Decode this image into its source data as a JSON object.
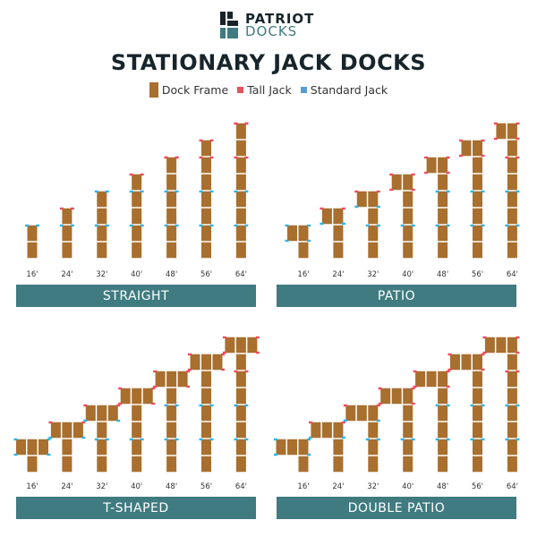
{
  "logo": {
    "top": "PATRIOT",
    "bottom": "DOCKS"
  },
  "title": "STATIONARY JACK DOCKS",
  "legend": [
    {
      "label": "Dock Frame",
      "color": "#a86f2e"
    },
    {
      "label": "Tall Jack",
      "color": "#e8525f"
    },
    {
      "label": "Standard Jack",
      "color": "#5b9bd5"
    }
  ],
  "colors": {
    "frame": "#a86f2e",
    "tall_jack": "#ef4b5c",
    "standard_jack": "#2fb4e6",
    "banner": "#3f7b80",
    "title": "#17252b"
  },
  "sizes": [
    "16'",
    "24'",
    "32'",
    "40'",
    "48'",
    "56'",
    "64'"
  ],
  "sections_per_size": [
    2,
    3,
    4,
    5,
    6,
    7,
    8
  ],
  "panels": [
    {
      "name": "STRAIGHT",
      "platform": "none"
    },
    {
      "name": "PATIO",
      "platform": "two-wide-left"
    },
    {
      "name": "T-SHAPED",
      "platform": "three-wide-centered"
    },
    {
      "name": "DOUBLE PATIO",
      "platform": "three-wide-left"
    }
  ]
}
